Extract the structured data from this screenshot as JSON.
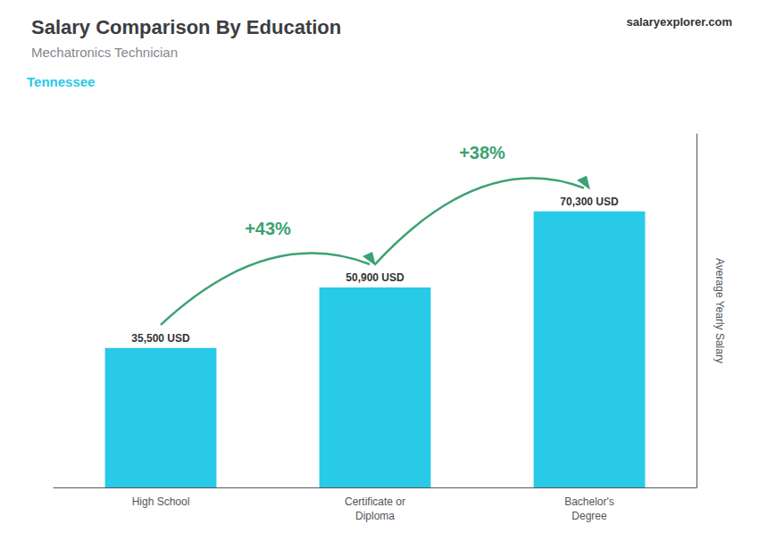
{
  "chart_data": {
    "type": "bar",
    "title": "Salary Comparison By Education",
    "subtitle": "Mechatronics Technician",
    "location": "Tennessee",
    "source": "salaryexplorer.com",
    "ylabel": "Average Yearly Salary",
    "categories": [
      "High School",
      "Certificate or\nDiploma",
      "Bachelor's\nDegree"
    ],
    "values": [
      35500,
      50900,
      70300
    ],
    "value_labels": [
      "35,500 USD",
      "50,900 USD",
      "70,300 USD"
    ],
    "data_labels": true,
    "annotations": [
      "+43%",
      "+38%"
    ],
    "color": "#29c9e8",
    "ylim": [
      0,
      90000
    ],
    "grid": false,
    "tick_labels": "x"
  }
}
